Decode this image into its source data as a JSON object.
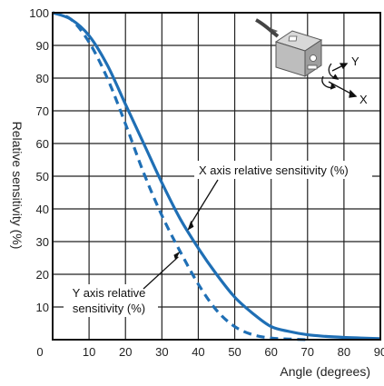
{
  "chart_data": {
    "type": "line",
    "title": "",
    "xlabel": "Angle (degrees)",
    "ylabel": "Relative sensitivity (%)",
    "xlim": [
      0,
      90
    ],
    "ylim": [
      0,
      100
    ],
    "x_ticks": [
      "0",
      "10",
      "20",
      "30",
      "40",
      "50",
      "60",
      "70",
      "80",
      "90"
    ],
    "y_ticks": [
      "100",
      "90",
      "80",
      "70",
      "60",
      "50",
      "40",
      "30",
      "20",
      "10"
    ],
    "grid": true,
    "series": [
      {
        "name": "X axis relative sensitivity (%)",
        "style": "solid",
        "color": "#1f6fb5",
        "x": [
          0,
          5,
          10,
          15,
          20,
          25,
          30,
          35,
          40,
          45,
          50,
          55,
          60,
          65,
          70,
          75,
          80,
          85,
          90
        ],
        "y": [
          100,
          98,
          93,
          84,
          72,
          60,
          48,
          37,
          28,
          20,
          13,
          8,
          4,
          2.5,
          1.5,
          1,
          0.7,
          0.5,
          0.3
        ]
      },
      {
        "name": "Y axis relative sensitivity (%)",
        "style": "dashed",
        "color": "#1f6fb5",
        "x": [
          0,
          5,
          10,
          15,
          20,
          25,
          30,
          35,
          40,
          45,
          50,
          55,
          60,
          65,
          70
        ],
        "y": [
          100,
          98,
          91,
          80,
          66,
          51,
          38,
          27,
          17,
          9,
          4,
          1.5,
          0.5,
          0.2,
          0
        ]
      }
    ],
    "annotations": [
      {
        "lines": [
          "X axis relative sensitivity (%)"
        ],
        "target_series": 0,
        "target_x": 37
      },
      {
        "lines": [
          "Y axis relative sensitivity (%)"
        ],
        "target_series": 1,
        "target_x": 35
      }
    ],
    "inset": {
      "icon": "sensor-cube-icon",
      "axis_labels": [
        "Y",
        "X"
      ]
    }
  }
}
